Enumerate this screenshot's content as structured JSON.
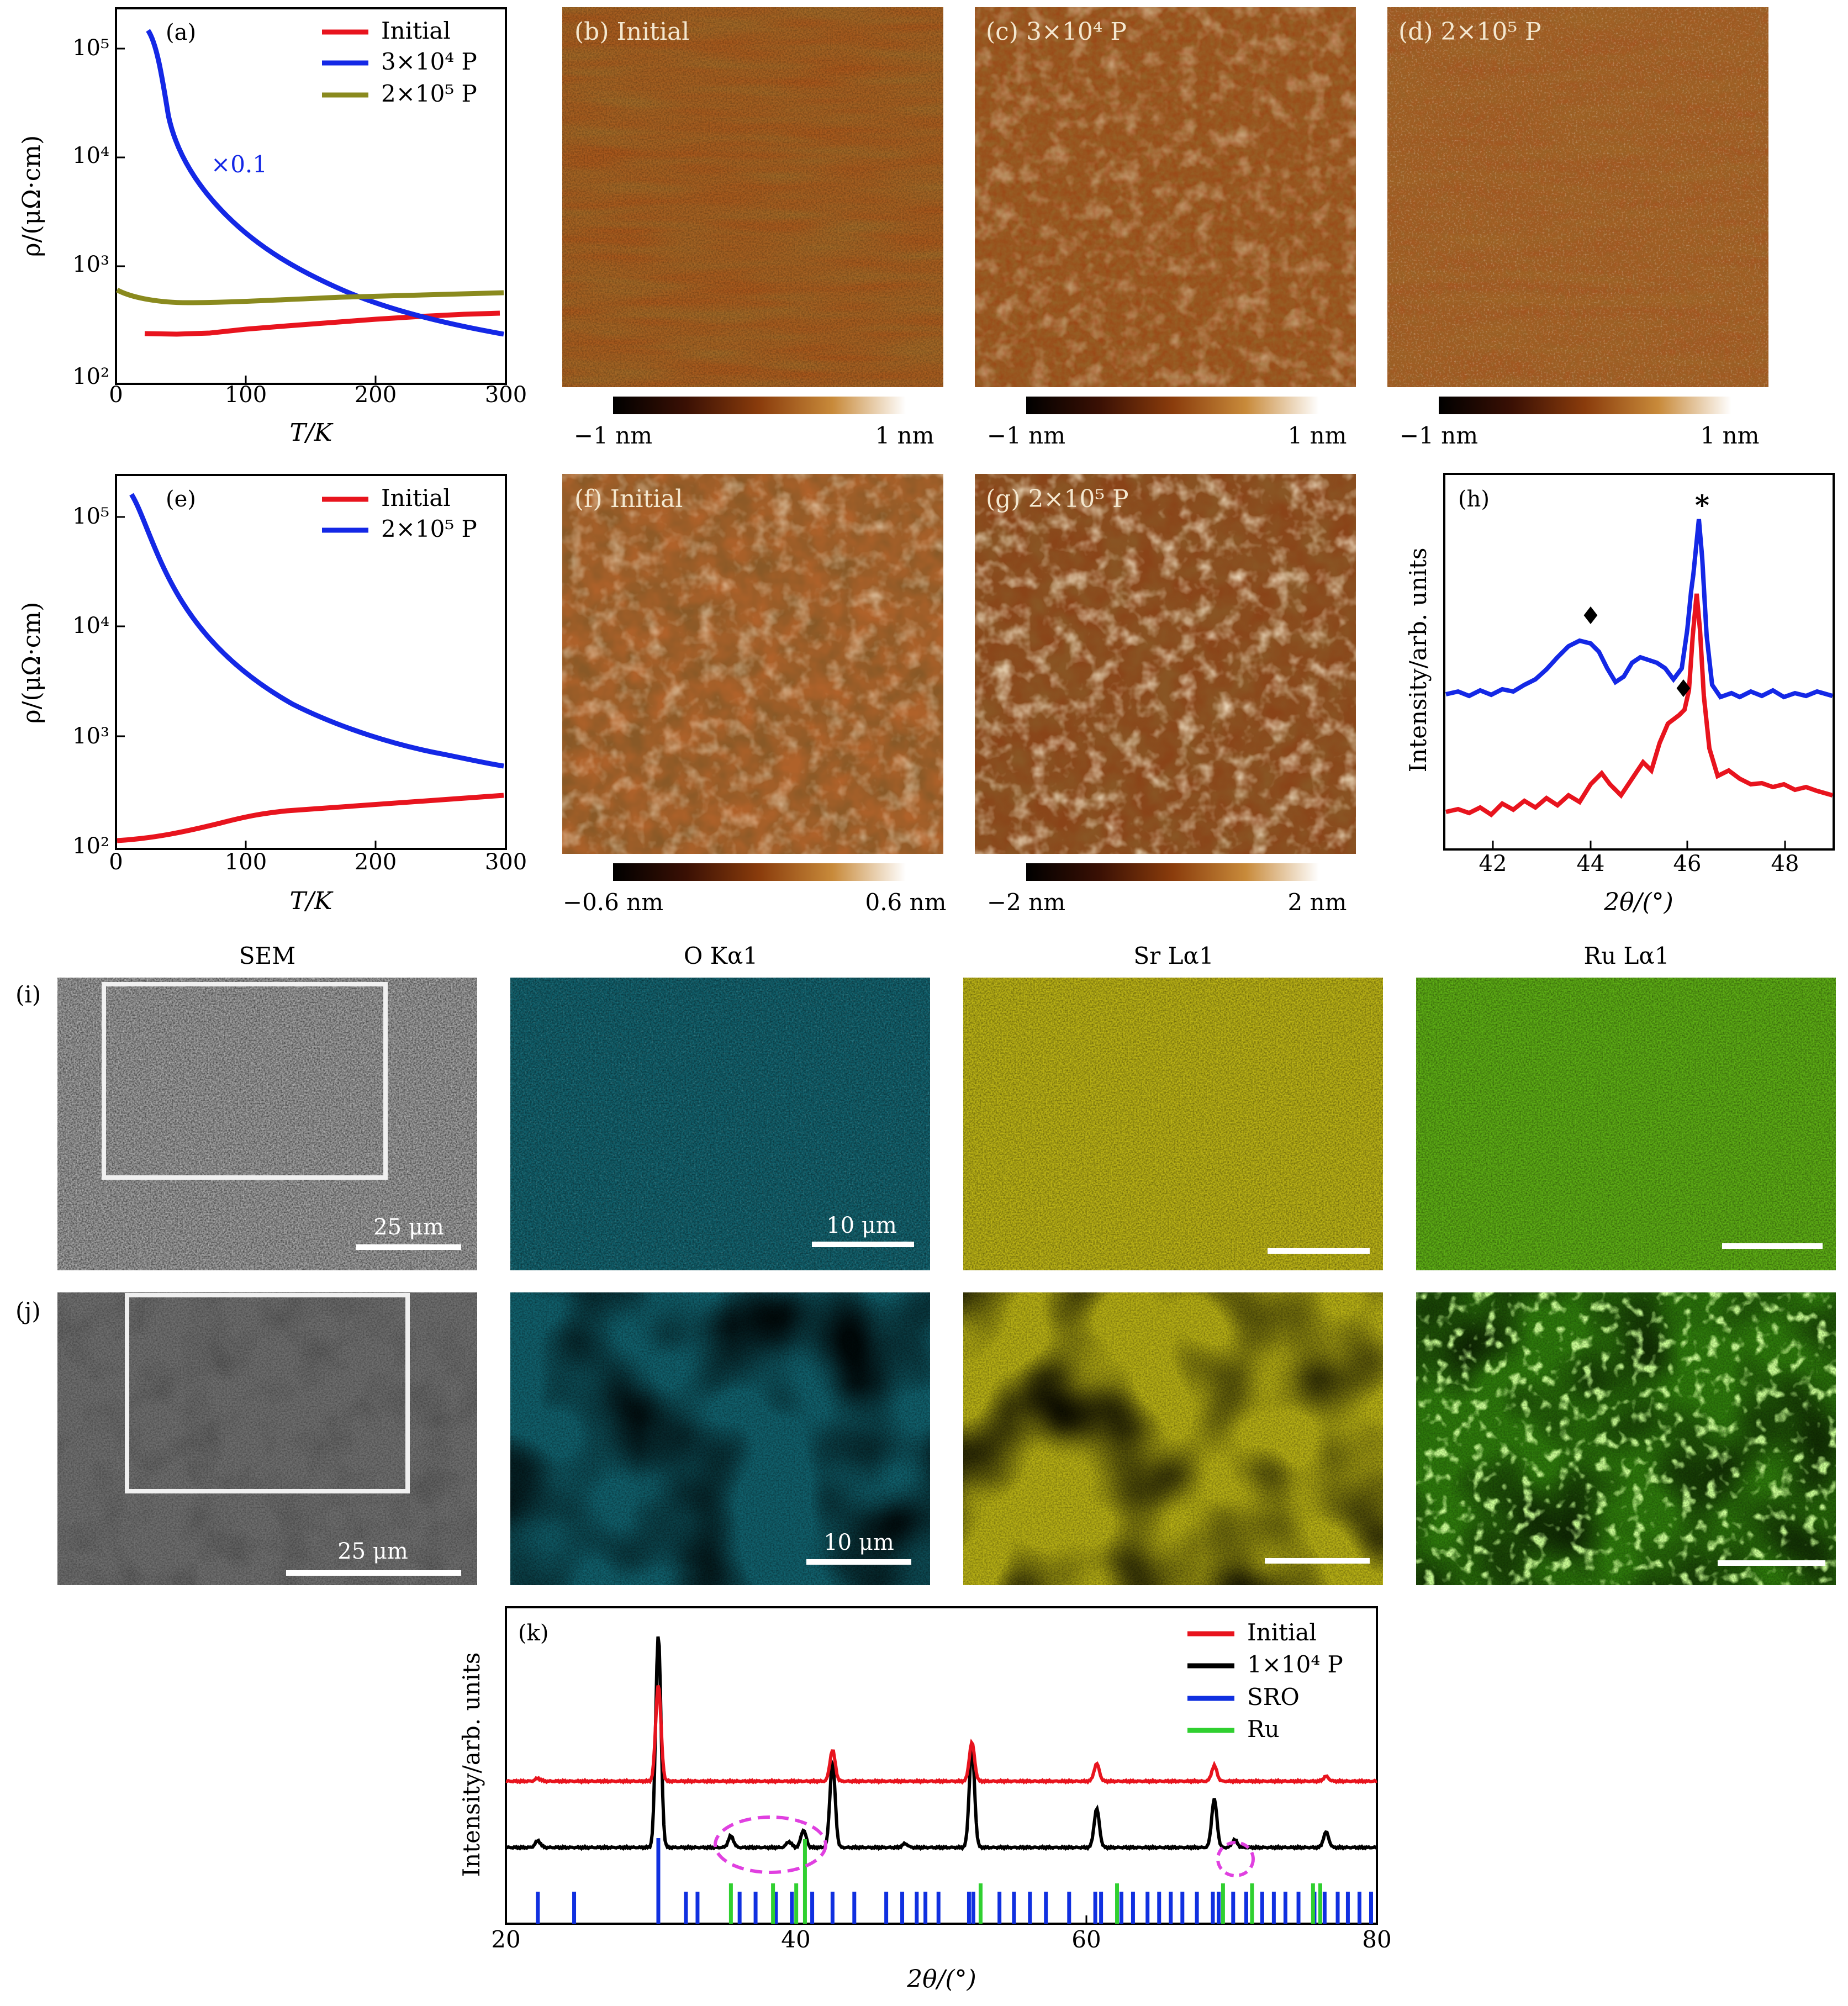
{
  "colors": {
    "initial": "#e8141e",
    "p3e4": "#1428e6",
    "p2e5": "#8a8a1e",
    "p1e4": "#000000",
    "sro": "#1030e0",
    "ru": "#30d030",
    "ellipse": "#e040e0"
  },
  "panel_a": {
    "label": "(a)",
    "annotation": "×0.1",
    "legend": [
      "Initial",
      "3×10⁴ P",
      "2×10⁵ P"
    ],
    "xlabel": "T/K",
    "ylabel": "ρ/(μΩ·cm)",
    "xticks": [
      "0",
      "100",
      "200",
      "300"
    ],
    "yticks": [
      "10²",
      "10³",
      "10⁴",
      "10⁵"
    ]
  },
  "panel_e": {
    "label": "(e)",
    "legend": [
      "Initial",
      "2×10⁵ P"
    ],
    "xlabel": "T/K",
    "ylabel": "ρ/(μΩ·cm)",
    "xticks": [
      "0",
      "100",
      "200",
      "300"
    ],
    "yticks": [
      "10²",
      "10³",
      "10⁴",
      "10⁵"
    ]
  },
  "afm": [
    {
      "id": "b",
      "label": "(b) Initial",
      "cbar_min": "−1 nm",
      "cbar_max": "1 nm"
    },
    {
      "id": "c",
      "label": "(c) 3×10⁴ P",
      "cbar_min": "−1 nm",
      "cbar_max": "1 nm"
    },
    {
      "id": "d",
      "label": "(d) 2×10⁵ P",
      "cbar_min": "−1 nm",
      "cbar_max": "1 nm"
    },
    {
      "id": "f",
      "label": "(f) Initial",
      "cbar_min": "−0.6 nm",
      "cbar_max": "0.6 nm"
    },
    {
      "id": "g",
      "label": "(g) 2×10⁵ P",
      "cbar_min": "−2 nm",
      "cbar_max": "2 nm"
    }
  ],
  "panel_h": {
    "label": "(h)",
    "xlabel": "2θ/(°)",
    "ylabel": "Intensity/arb. units",
    "xticks": [
      "42",
      "44",
      "46",
      "48"
    ],
    "markers": {
      "diamond": "♦",
      "star": "*"
    }
  },
  "eds": {
    "headers": [
      "SEM",
      "O Kα1",
      "Sr Lα1",
      "Ru Lα1"
    ],
    "row_labels": [
      "(i)",
      "(j)"
    ],
    "scale_sem": "25 μm",
    "scale_map": "10 μm"
  },
  "panel_k": {
    "label": "(k)",
    "legend": [
      "Initial",
      "1×10⁴ P",
      "SRO",
      "Ru"
    ],
    "xlabel": "2θ/(°)",
    "ylabel": "Intensity/arb. units",
    "xticks": [
      "20",
      "40",
      "60",
      "80"
    ]
  },
  "chart_data": [
    {
      "type": "line",
      "panel": "a",
      "xlabel": "T/K",
      "ylabel": "ρ/(μΩ·cm)",
      "xlim": [
        0,
        300
      ],
      "ylim": [
        100,
        200000
      ],
      "yscale": "log",
      "annotation": "×0.1",
      "series": [
        {
          "name": "Initial",
          "x": [
            25,
            50,
            100,
            150,
            200,
            250,
            300
          ],
          "y": [
            245,
            242,
            262,
            285,
            300,
            315,
            325
          ]
        },
        {
          "name": "3×10⁴ P",
          "x": [
            25,
            30,
            40,
            50,
            70,
            100,
            150,
            200,
            250,
            300
          ],
          "y": [
            140000,
            100000,
            35000,
            20000,
            7500,
            3000,
            1000,
            500,
            330,
            245
          ]
        },
        {
          "name": "2×10⁵ P",
          "x": [
            0,
            25,
            50,
            75,
            100,
            150,
            200,
            250,
            300
          ],
          "y": [
            620,
            520,
            470,
            470,
            480,
            500,
            520,
            540,
            560
          ]
        }
      ]
    },
    {
      "type": "line",
      "panel": "e",
      "xlabel": "T/K",
      "ylabel": "ρ/(μΩ·cm)",
      "xlim": [
        0,
        300
      ],
      "ylim": [
        100,
        200000
      ],
      "yscale": "log",
      "series": [
        {
          "name": "Initial",
          "x": [
            0,
            50,
            100,
            130,
            200,
            300
          ],
          "y": [
            115,
            130,
            170,
            200,
            230,
            280
          ]
        },
        {
          "name": "2×10⁵ P",
          "x": [
            12,
            20,
            30,
            50,
            80,
            100,
            150,
            200,
            250,
            300
          ],
          "y": [
            140000,
            80000,
            35000,
            11000,
            4500,
            2700,
            1500,
            900,
            700,
            560
          ]
        }
      ]
    },
    {
      "type": "line",
      "panel": "h",
      "xlabel": "2θ/(°)",
      "ylabel": "Intensity/arb. units",
      "xlim": [
        41,
        49
      ],
      "series": [
        {
          "name": "Initial",
          "x": [
            41,
            42,
            43,
            44,
            44.3,
            45,
            45.5,
            46,
            46.3,
            46.5,
            46.7,
            47,
            47.2,
            48,
            49
          ],
          "y": [
            0.06,
            0.08,
            0.09,
            0.14,
            0.19,
            0.24,
            0.34,
            0.44,
            0.55,
            1.05,
            0.5,
            0.18,
            0.21,
            0.12,
            0.1
          ]
        },
        {
          "name": "3×10⁴ / 2×10⁵ P",
          "x": [
            41,
            42,
            43,
            43.5,
            44,
            44.5,
            45,
            45.5,
            46,
            46.3,
            46.5,
            46.7,
            47,
            48,
            49
          ],
          "y": [
            0.53,
            0.54,
            0.58,
            0.66,
            0.75,
            0.68,
            0.63,
            0.66,
            0.7,
            0.86,
            1.24,
            0.75,
            0.58,
            0.56,
            0.55
          ]
        }
      ]
    },
    {
      "type": "line",
      "panel": "k",
      "xlabel": "2θ/(°)",
      "ylabel": "Intensity/arb. units",
      "xlim": [
        20,
        80
      ],
      "series": [
        {
          "name": "Initial",
          "peaks": [
            [
              22.2,
              0.03
            ],
            [
              30.5,
              1.0
            ],
            [
              42.5,
              0.32
            ],
            [
              52.1,
              0.4
            ],
            [
              60.7,
              0.18
            ],
            [
              68.8,
              0.16
            ],
            [
              76.5,
              0.05
            ]
          ]
        },
        {
          "name": "1×10⁴ P",
          "peaks": [
            [
              22.2,
              0.07
            ],
            [
              30.5,
              2.2
            ],
            [
              35.5,
              0.12
            ],
            [
              39.5,
              0.06
            ],
            [
              40.5,
              0.18
            ],
            [
              42.5,
              0.88
            ],
            [
              47.5,
              0.04
            ],
            [
              52.1,
              1.05
            ],
            [
              60.7,
              0.4
            ],
            [
              68.8,
              0.5
            ],
            [
              70.2,
              0.08
            ],
            [
              76.5,
              0.16
            ]
          ]
        },
        {
          "name": "SRO",
          "positions": [
            22.2,
            24.7,
            30.5,
            32.4,
            33.2,
            36.1,
            37.2,
            38.6,
            39.7,
            41.1,
            42.5,
            44.0,
            46.2,
            47.3,
            48.3,
            48.9,
            49.8,
            51.9,
            52.2,
            54.0,
            55.0,
            56.1,
            57.2,
            58.8,
            60.6,
            61.0,
            62.4,
            63.2,
            64.2,
            65.0,
            65.8,
            66.6,
            67.6,
            68.7,
            69.1,
            70.1,
            71.0,
            72.1,
            72.9,
            73.7,
            74.6,
            75.7,
            76.4,
            77.3,
            78.0,
            78.8,
            79.6
          ]
        },
        {
          "name": "Ru",
          "positions": [
            35.5,
            38.4,
            40.0,
            40.6,
            52.7,
            62.1,
            69.4,
            71.4,
            75.6,
            76.1
          ]
        }
      ]
    }
  ]
}
